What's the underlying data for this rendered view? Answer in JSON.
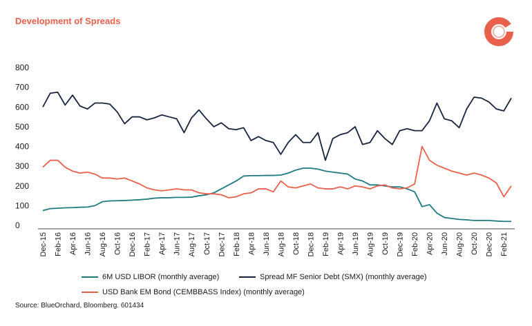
{
  "header": {
    "title": "Development of Spreads"
  },
  "source": "Source: BlueOrchard, Bloomberg. 601434",
  "colors": {
    "title": "#e8604c",
    "libor": "#1f7a80",
    "smx": "#17243d",
    "cembbass": "#e8604c",
    "logo_outer": "#e8604c",
    "logo_inner": "#f4b3a8"
  },
  "chart_data": {
    "type": "line",
    "title": "Development of Spreads",
    "xlabel": "",
    "ylabel": "",
    "ylim": [
      0,
      800
    ],
    "yticks": [
      0,
      100,
      200,
      300,
      400,
      500,
      600,
      700,
      800
    ],
    "grid": false,
    "legend_position": "bottom",
    "x": [
      "Dec-15",
      "Jan-16",
      "Feb-16",
      "Mar-16",
      "Apr-16",
      "May-16",
      "Jun-16",
      "Jul-16",
      "Aug-16",
      "Sep-16",
      "Oct-16",
      "Nov-16",
      "Dec-16",
      "Jan-17",
      "Feb-17",
      "Mar-17",
      "Apr-17",
      "May-17",
      "Jun-17",
      "Jul-17",
      "Aug-17",
      "Sep-17",
      "Oct-17",
      "Nov-17",
      "Dec-17",
      "Jan-18",
      "Feb-18",
      "Mar-18",
      "Apr-18",
      "May-18",
      "Jun-18",
      "Jul-18",
      "Aug-18",
      "Sep-18",
      "Oct-18",
      "Nov-18",
      "Dec-18",
      "Jan-19",
      "Feb-19",
      "Mar-19",
      "Apr-19",
      "May-19",
      "Jun-19",
      "Jul-19",
      "Aug-19",
      "Sep-19",
      "Oct-19",
      "Nov-19",
      "Dec-19",
      "Jan-20",
      "Feb-20",
      "Mar-20",
      "Apr-20",
      "May-20",
      "Jun-20",
      "Jul-20",
      "Aug-20",
      "Sep-20",
      "Oct-20",
      "Nov-20",
      "Dec-20",
      "Jan-21",
      "Feb-21",
      "Mar-21"
    ],
    "xtick_labels": [
      "Dec-15",
      "Feb-16",
      "Apr-16",
      "Jun-16",
      "Aug-16",
      "Oct-16",
      "Dec-16",
      "Feb-17",
      "Apr-17",
      "Jun-17",
      "Aug-17",
      "Oct-17",
      "Dec-17",
      "Feb-18",
      "Apr-18",
      "Jun-18",
      "Aug-18",
      "Oct-18",
      "Dec-18",
      "Feb-19",
      "Apr-19",
      "Jun-19",
      "Aug-19",
      "Oct-19",
      "Dec-19",
      "Feb-20",
      "Apr-20",
      "Jun-20",
      "Aug-20",
      "Oct-20",
      "Dec-20",
      "Feb-21"
    ],
    "series": [
      {
        "name": "6M USD LIBOR (monthly average)",
        "color": "#1f7a80",
        "values": [
          75,
          85,
          87,
          89,
          90,
          92,
          93,
          100,
          120,
          124,
          125,
          126,
          128,
          130,
          133,
          138,
          140,
          140,
          142,
          142,
          143,
          150,
          155,
          165,
          185,
          205,
          225,
          250,
          252,
          252,
          253,
          253,
          255,
          265,
          280,
          290,
          290,
          285,
          275,
          270,
          265,
          260,
          235,
          225,
          205,
          205,
          200,
          195,
          195,
          185,
          170,
          95,
          105,
          62,
          40,
          35,
          30,
          28,
          25,
          25,
          25,
          22,
          20,
          20
        ]
      },
      {
        "name": "Spread MF Senior Debt (SMX) (monthly average)",
        "color": "#17243d",
        "values": [
          600,
          670,
          675,
          610,
          660,
          605,
          590,
          620,
          620,
          615,
          575,
          515,
          550,
          550,
          535,
          545,
          560,
          550,
          540,
          470,
          545,
          585,
          540,
          500,
          520,
          490,
          485,
          495,
          430,
          450,
          430,
          420,
          360,
          420,
          460,
          420,
          420,
          470,
          330,
          440,
          460,
          470,
          500,
          410,
          420,
          480,
          440,
          410,
          480,
          490,
          480,
          480,
          530,
          620,
          540,
          530,
          495,
          590,
          650,
          645,
          625,
          590,
          580,
          645
        ]
      },
      {
        "name": "USD Bank EM Bond (CEMBBASS Index) (monthly average)",
        "color": "#e8604c",
        "values": [
          295,
          330,
          330,
          295,
          275,
          265,
          270,
          260,
          240,
          240,
          235,
          240,
          225,
          210,
          190,
          180,
          175,
          180,
          185,
          180,
          180,
          165,
          160,
          160,
          155,
          140,
          145,
          160,
          165,
          185,
          185,
          170,
          225,
          195,
          190,
          200,
          210,
          190,
          185,
          185,
          195,
          185,
          200,
          195,
          185,
          200,
          205,
          190,
          185,
          190,
          210,
          400,
          330,
          305,
          290,
          275,
          265,
          255,
          265,
          255,
          240,
          215,
          145,
          200
        ]
      }
    ]
  }
}
